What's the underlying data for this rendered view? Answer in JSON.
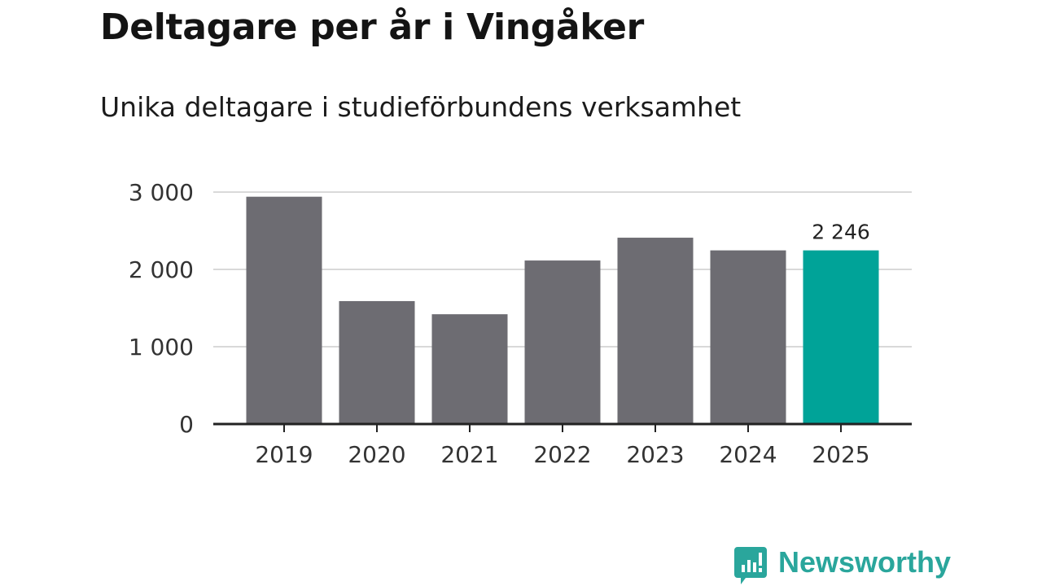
{
  "header": {
    "title": "Deltagare per år i Vingåker",
    "subtitle": "Unika deltagare i studieförbundens verksamhet"
  },
  "chart_data": {
    "type": "bar",
    "title": "Deltagare per år i Vingåker",
    "subtitle": "Unika deltagare i studieförbundens verksamhet",
    "categories": [
      "2019",
      "2020",
      "2021",
      "2022",
      "2023",
      "2024",
      "2025"
    ],
    "values": [
      2940,
      1590,
      1420,
      2115,
      2410,
      2246,
      2246
    ],
    "ylim": [
      0,
      3000
    ],
    "yticks": [
      0,
      1000,
      2000,
      3000
    ],
    "ytick_labels": [
      "0",
      "1 000",
      "2 000",
      "3 000"
    ],
    "xlabel": "",
    "ylabel": "",
    "grid": true,
    "highlight": {
      "index": 6,
      "label": "2 246"
    },
    "colors": {
      "bar": "#6d6c72",
      "highlight": "#00a398",
      "grid": "#d9d9d9",
      "axis": "#222222"
    }
  },
  "branding": {
    "name": "Newsworthy",
    "icon": "newsworthy-logo-icon",
    "color": "#2aa69c"
  }
}
